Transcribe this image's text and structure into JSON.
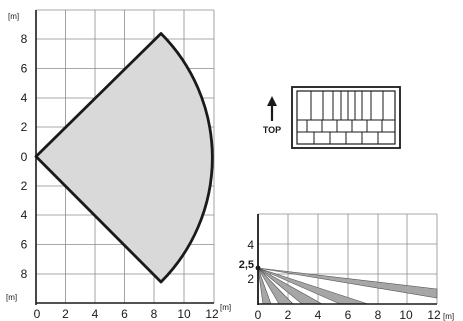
{
  "top_view": {
    "unit_top": "[m]",
    "unit_bottom": "[m]",
    "unit_x": "[m]",
    "y_ticks": [
      "8",
      "6",
      "4",
      "2",
      "0",
      "2",
      "4",
      "6",
      "8"
    ],
    "x_ticks": [
      "0",
      "2",
      "4",
      "6",
      "8",
      "10",
      "12"
    ]
  },
  "mount": {
    "arrow_label": "TOP"
  },
  "side_view": {
    "y_ticks": [
      "4",
      "2,5",
      "2"
    ],
    "x_ticks": [
      "0",
      "2",
      "4",
      "6",
      "8",
      "10",
      "12"
    ],
    "unit_x": "[m]"
  },
  "colors": {
    "fill": "#d9d9d9",
    "grid": "#8c8c8c",
    "stroke": "#1a1a1a"
  }
}
